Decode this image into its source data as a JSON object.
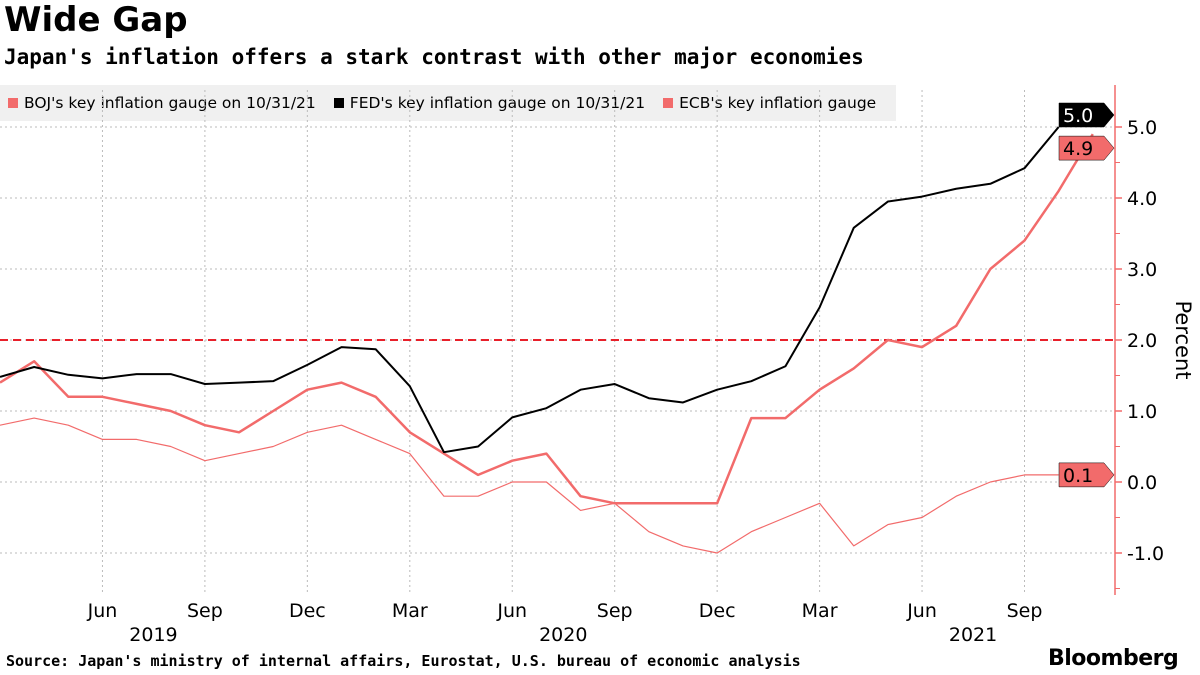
{
  "title": "Wide Gap",
  "subtitle": "Japan's inflation offers a stark contrast with other major economies",
  "source": "Source: Japan's ministry of internal affairs, Eurostat, U.S. bureau of economic analysis",
  "logo": "Bloomberg",
  "chart_data": {
    "type": "line",
    "ylabel": "Percent",
    "ylim": [
      -1.6,
      5.5
    ],
    "yticks": [
      "-1.0",
      "0.0",
      "1.0",
      "2.0",
      "3.0",
      "4.0",
      "5.0"
    ],
    "reference_line": {
      "value": 2.0,
      "color": "#e8202a",
      "style": "dashed"
    },
    "x_start": "2019-03",
    "xticks": [
      {
        "label": "Jun",
        "year": "2019",
        "i": 3
      },
      {
        "label": "Sep",
        "i": 6
      },
      {
        "label": "Dec",
        "i": 9
      },
      {
        "label": "Mar",
        "i": 12
      },
      {
        "label": "Jun",
        "year": "2020",
        "i": 15
      },
      {
        "label": "Sep",
        "i": 18
      },
      {
        "label": "Dec",
        "i": 21
      },
      {
        "label": "Mar",
        "i": 24
      },
      {
        "label": "Jun",
        "year": "2021",
        "i": 27
      },
      {
        "label": "Sep",
        "i": 30
      }
    ],
    "series": [
      {
        "name": "BOJ's key inflation gauge on 10/31/21",
        "color": "#f26b6b",
        "width": 1.2,
        "end_label": "0.1",
        "values": [
          0.8,
          0.9,
          0.8,
          0.6,
          0.6,
          0.5,
          0.3,
          0.4,
          0.5,
          0.7,
          0.8,
          0.6,
          0.4,
          -0.2,
          -0.2,
          0.0,
          0.0,
          -0.4,
          -0.3,
          -0.7,
          -0.9,
          -1.0,
          -0.7,
          -0.5,
          -0.3,
          -0.9,
          -0.6,
          -0.5,
          -0.2,
          0.0,
          0.1,
          0.1
        ]
      },
      {
        "name": "FED's key inflation gauge on 10/31/21",
        "color": "#000000",
        "width": 2,
        "end_label": "5.0",
        "values": [
          1.48,
          1.62,
          1.51,
          1.46,
          1.52,
          1.52,
          1.38,
          1.4,
          1.42,
          1.65,
          1.9,
          1.87,
          1.35,
          0.42,
          0.5,
          0.91,
          1.04,
          1.3,
          1.38,
          1.18,
          1.12,
          1.3,
          1.42,
          1.63,
          2.46,
          3.58,
          3.95,
          4.02,
          4.13,
          4.2,
          4.42,
          5.0
        ]
      },
      {
        "name": "ECB's key inflation gauge",
        "color": "#f26b6b",
        "width": 2.5,
        "end_label": "4.9",
        "values": [
          1.4,
          1.7,
          1.2,
          1.2,
          1.1,
          1.0,
          0.8,
          0.7,
          1.0,
          1.3,
          1.4,
          1.2,
          0.7,
          0.4,
          0.1,
          0.3,
          0.4,
          -0.2,
          -0.3,
          -0.3,
          -0.3,
          -0.3,
          0.9,
          0.9,
          1.3,
          1.6,
          2.0,
          1.9,
          2.2,
          3.0,
          3.4,
          4.1,
          4.9
        ]
      }
    ]
  }
}
